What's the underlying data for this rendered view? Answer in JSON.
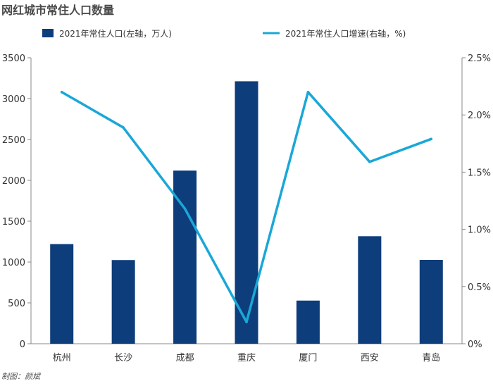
{
  "title": "网红城市常住人口数量",
  "credit": "制图：颜斌",
  "chart_data": {
    "type": "bar",
    "title": "网红城市常住人口数量",
    "categories": [
      "杭州",
      "长沙",
      "成都",
      "重庆",
      "厦门",
      "西安",
      "青岛"
    ],
    "series": [
      {
        "name": "2021年常住人口(左轴，万人)",
        "type": "bar",
        "axis": "left",
        "color": "#0d3d7a",
        "values": [
          1220,
          1024,
          2119,
          3212,
          528,
          1316,
          1026
        ]
      },
      {
        "name": "2021年常住人口增速(右轴，%)",
        "type": "line",
        "axis": "right",
        "color": "#1aa7d8",
        "values": [
          2.2,
          1.89,
          1.18,
          0.19,
          2.2,
          1.59,
          1.79
        ]
      }
    ],
    "ylim_left": [
      0,
      3500
    ],
    "yticks_left": [
      "0",
      "500",
      "1000",
      "1500",
      "2000",
      "2500",
      "3000",
      "3500"
    ],
    "ylim_right": [
      0,
      2.5
    ],
    "yticks_right": [
      "0%",
      "0.5%",
      "1.0%",
      "1.5%",
      "2.0%",
      "2.5%"
    ],
    "legend": "top",
    "grid": false
  }
}
